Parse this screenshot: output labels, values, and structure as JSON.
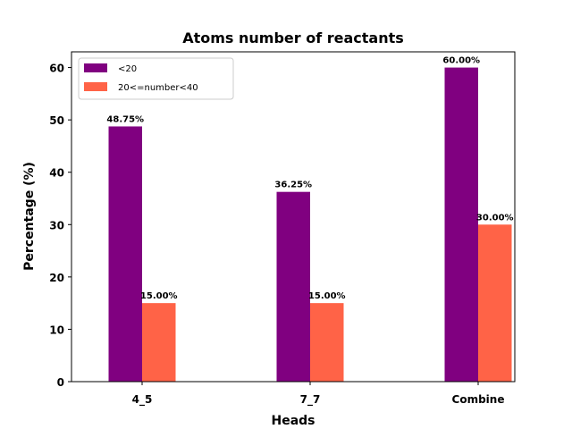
{
  "chart_data": {
    "type": "bar",
    "title": "Atoms number of reactants",
    "xlabel": "Heads",
    "ylabel": "Percentage (%)",
    "categories": [
      "4_5",
      "7_7",
      "Combine"
    ],
    "series": [
      {
        "name": "<20",
        "values": [
          48.75,
          36.25,
          60.0
        ],
        "color": "#800080"
      },
      {
        "name": "20<=number<40",
        "values": [
          15.0,
          15.0,
          30.0
        ],
        "color": "#ff6347"
      }
    ],
    "data_labels": [
      [
        "48.75%",
        "36.25%",
        "60.00%"
      ],
      [
        "15.00%",
        "15.00%",
        "30.00%"
      ]
    ],
    "ylim": [
      0,
      63
    ],
    "yticks": [
      0,
      10,
      20,
      30,
      40,
      50,
      60
    ],
    "legend": "top-left",
    "grid": false
  }
}
